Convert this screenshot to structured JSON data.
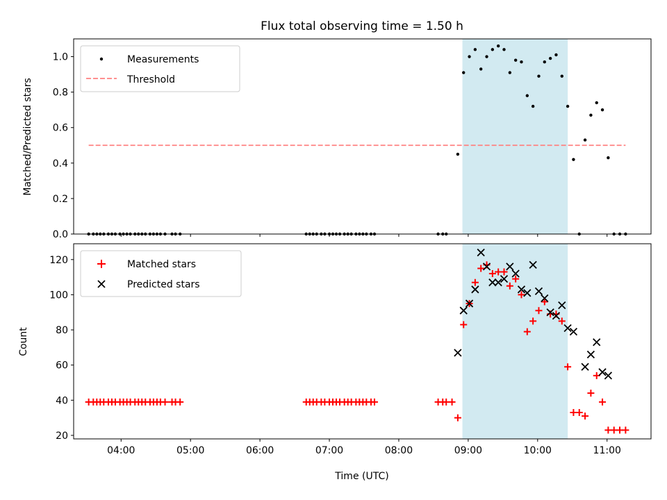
{
  "chart_data": [
    {
      "type": "scatter",
      "title": "Flux total observing time = 1.50 h",
      "xlabel": "",
      "ylabel": "Matched/Predicted stars",
      "xlim": [
        "03:19",
        "11:38"
      ],
      "ylim": [
        0,
        1.1
      ],
      "yticks": [
        0.0,
        0.2,
        0.4,
        0.6,
        0.8,
        1.0
      ],
      "ytick_labels": [
        "0.0",
        "0.2",
        "0.4",
        "0.6",
        "0.8",
        "1.0"
      ],
      "legend_position": "upper left",
      "grid": false,
      "shaded_span": {
        "x_start": "08:55",
        "x_end": "10:26",
        "color": "#add8e6"
      },
      "series": [
        {
          "name": "Measurements",
          "marker": "dot",
          "color": "#000000",
          "points": [
            [
              "03:32",
              0
            ],
            [
              "03:36",
              0
            ],
            [
              "03:39",
              0
            ],
            [
              "03:42",
              0
            ],
            [
              "03:45",
              0
            ],
            [
              "03:49",
              0
            ],
            [
              "03:52",
              0
            ],
            [
              "03:55",
              0
            ],
            [
              "03:59",
              0
            ],
            [
              "04:02",
              0
            ],
            [
              "04:05",
              0
            ],
            [
              "04:08",
              0
            ],
            [
              "04:12",
              0
            ],
            [
              "04:15",
              0
            ],
            [
              "04:18",
              0
            ],
            [
              "04:21",
              0
            ],
            [
              "04:25",
              0
            ],
            [
              "04:28",
              0
            ],
            [
              "04:31",
              0
            ],
            [
              "04:34",
              0
            ],
            [
              "04:38",
              0
            ],
            [
              "04:44",
              0
            ],
            [
              "04:47",
              0
            ],
            [
              "04:51",
              0
            ],
            [
              "06:40",
              0
            ],
            [
              "06:43",
              0
            ],
            [
              "06:46",
              0
            ],
            [
              "06:49",
              0
            ],
            [
              "06:53",
              0
            ],
            [
              "06:56",
              0
            ],
            [
              "07:00",
              0
            ],
            [
              "07:03",
              0
            ],
            [
              "07:06",
              0
            ],
            [
              "07:09",
              0
            ],
            [
              "07:13",
              0
            ],
            [
              "07:16",
              0
            ],
            [
              "07:19",
              0
            ],
            [
              "07:23",
              0
            ],
            [
              "07:26",
              0
            ],
            [
              "07:29",
              0
            ],
            [
              "07:32",
              0
            ],
            [
              "07:36",
              0
            ],
            [
              "07:39",
              0
            ],
            [
              "08:34",
              0
            ],
            [
              "08:38",
              0
            ],
            [
              "08:41",
              0
            ],
            [
              "08:51",
              0.45
            ],
            [
              "08:56",
              0.91
            ],
            [
              "09:01",
              1.0
            ],
            [
              "09:06",
              1.04
            ],
            [
              "09:11",
              0.93
            ],
            [
              "09:16",
              1.0
            ],
            [
              "09:21",
              1.04
            ],
            [
              "09:26",
              1.06
            ],
            [
              "09:31",
              1.04
            ],
            [
              "09:36",
              0.91
            ],
            [
              "09:41",
              0.98
            ],
            [
              "09:46",
              0.97
            ],
            [
              "09:51",
              0.78
            ],
            [
              "09:56",
              0.72
            ],
            [
              "10:01",
              0.89
            ],
            [
              "10:06",
              0.97
            ],
            [
              "10:11",
              0.99
            ],
            [
              "10:16",
              1.01
            ],
            [
              "10:21",
              0.89
            ],
            [
              "10:26",
              0.72
            ],
            [
              "10:31",
              0.42
            ],
            [
              "10:36",
              0
            ],
            [
              "10:41",
              0.53
            ],
            [
              "10:46",
              0.67
            ],
            [
              "10:51",
              0.74
            ],
            [
              "10:56",
              0.7
            ],
            [
              "11:01",
              0.43
            ],
            [
              "11:06",
              0
            ],
            [
              "11:11",
              0
            ],
            [
              "11:16",
              0
            ]
          ]
        },
        {
          "name": "Threshold",
          "style": "dashed",
          "color": "#ff8080",
          "x": [
            "03:32",
            "11:16"
          ],
          "y": [
            0.5,
            0.5
          ]
        }
      ]
    },
    {
      "type": "scatter",
      "title": "",
      "xlabel": "Time (UTC)",
      "ylabel": "Count",
      "xlim": [
        "03:19",
        "11:38"
      ],
      "ylim": [
        18,
        129
      ],
      "yticks": [
        20,
        40,
        60,
        80,
        100,
        120
      ],
      "ytick_labels": [
        "20",
        "40",
        "60",
        "80",
        "100",
        "120"
      ],
      "xticks": [
        "04:00",
        "05:00",
        "06:00",
        "07:00",
        "08:00",
        "09:00",
        "10:00",
        "11:00"
      ],
      "legend_position": "upper left",
      "grid": false,
      "shaded_span": {
        "x_start": "08:55",
        "x_end": "10:26",
        "color": "#add8e6"
      },
      "series": [
        {
          "name": "Matched stars",
          "marker": "plus",
          "color": "#ff0000",
          "points": [
            [
              "03:32",
              39
            ],
            [
              "03:36",
              39
            ],
            [
              "03:39",
              39
            ],
            [
              "03:42",
              39
            ],
            [
              "03:45",
              39
            ],
            [
              "03:49",
              39
            ],
            [
              "03:52",
              39
            ],
            [
              "03:55",
              39
            ],
            [
              "03:59",
              39
            ],
            [
              "04:02",
              39
            ],
            [
              "04:05",
              39
            ],
            [
              "04:08",
              39
            ],
            [
              "04:12",
              39
            ],
            [
              "04:15",
              39
            ],
            [
              "04:18",
              39
            ],
            [
              "04:21",
              39
            ],
            [
              "04:25",
              39
            ],
            [
              "04:28",
              39
            ],
            [
              "04:31",
              39
            ],
            [
              "04:34",
              39
            ],
            [
              "04:38",
              39
            ],
            [
              "04:44",
              39
            ],
            [
              "04:47",
              39
            ],
            [
              "04:51",
              39
            ],
            [
              "06:40",
              39
            ],
            [
              "06:43",
              39
            ],
            [
              "06:46",
              39
            ],
            [
              "06:49",
              39
            ],
            [
              "06:53",
              39
            ],
            [
              "06:56",
              39
            ],
            [
              "07:00",
              39
            ],
            [
              "07:03",
              39
            ],
            [
              "07:06",
              39
            ],
            [
              "07:09",
              39
            ],
            [
              "07:13",
              39
            ],
            [
              "07:16",
              39
            ],
            [
              "07:19",
              39
            ],
            [
              "07:23",
              39
            ],
            [
              "07:26",
              39
            ],
            [
              "07:29",
              39
            ],
            [
              "07:32",
              39
            ],
            [
              "07:36",
              39
            ],
            [
              "07:39",
              39
            ],
            [
              "08:34",
              39
            ],
            [
              "08:38",
              39
            ],
            [
              "08:41",
              39
            ],
            [
              "08:46",
              39
            ],
            [
              "08:51",
              30
            ],
            [
              "08:56",
              83
            ],
            [
              "09:01",
              95
            ],
            [
              "09:06",
              107
            ],
            [
              "09:11",
              115
            ],
            [
              "09:16",
              117
            ],
            [
              "09:21",
              112
            ],
            [
              "09:26",
              113
            ],
            [
              "09:31",
              113
            ],
            [
              "09:36",
              105
            ],
            [
              "09:41",
              109
            ],
            [
              "09:46",
              100
            ],
            [
              "09:51",
              79
            ],
            [
              "09:56",
              85
            ],
            [
              "10:01",
              91
            ],
            [
              "10:06",
              96
            ],
            [
              "10:11",
              89
            ],
            [
              "10:16",
              89
            ],
            [
              "10:21",
              85
            ],
            [
              "10:26",
              59
            ],
            [
              "10:31",
              33
            ],
            [
              "10:36",
              33
            ],
            [
              "10:41",
              31
            ],
            [
              "10:46",
              44
            ],
            [
              "10:51",
              54
            ],
            [
              "10:56",
              39
            ],
            [
              "11:01",
              23
            ],
            [
              "11:06",
              23
            ],
            [
              "11:11",
              23
            ],
            [
              "11:16",
              23
            ]
          ]
        },
        {
          "name": "Predicted stars",
          "marker": "x",
          "color": "#000000",
          "points": [
            [
              "08:51",
              67
            ],
            [
              "08:56",
              91
            ],
            [
              "09:01",
              95
            ],
            [
              "09:06",
              103
            ],
            [
              "09:11",
              124
            ],
            [
              "09:16",
              116
            ],
            [
              "09:21",
              107
            ],
            [
              "09:26",
              107
            ],
            [
              "09:31",
              109
            ],
            [
              "09:36",
              116
            ],
            [
              "09:41",
              112
            ],
            [
              "09:46",
              103
            ],
            [
              "09:51",
              101
            ],
            [
              "09:56",
              117
            ],
            [
              "10:01",
              102
            ],
            [
              "10:06",
              98
            ],
            [
              "10:11",
              90
            ],
            [
              "10:16",
              88
            ],
            [
              "10:21",
              94
            ],
            [
              "10:26",
              81
            ],
            [
              "10:31",
              79
            ],
            [
              "10:41",
              59
            ],
            [
              "10:46",
              66
            ],
            [
              "10:51",
              73
            ],
            [
              "10:56",
              56
            ],
            [
              "11:01",
              54
            ]
          ]
        }
      ]
    }
  ]
}
